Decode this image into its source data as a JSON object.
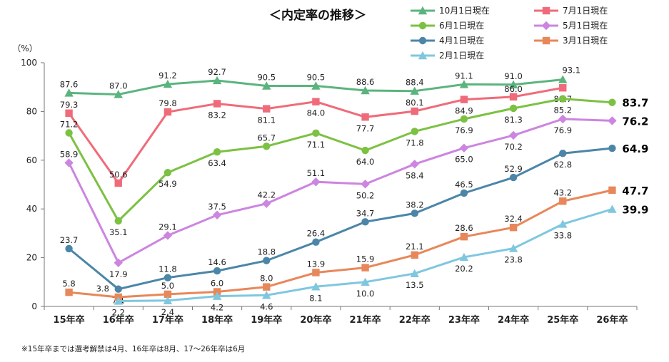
{
  "chart_data": {
    "type": "line",
    "title": "＜内定率の推移＞",
    "ylabel": "（%）",
    "ylim": [
      0,
      100
    ],
    "yticks": [
      0,
      20,
      40,
      60,
      80,
      100
    ],
    "categories": [
      "15年卒",
      "16年卒",
      "17年卒",
      "18年卒",
      "19年卒",
      "20年卒",
      "21年卒",
      "22年卒",
      "23年卒",
      "24年卒",
      "25年卒",
      "26年卒"
    ],
    "series": [
      {
        "name": "10月1日現在",
        "color": "#5bb47e",
        "marker": "triangle",
        "values": [
          87.6,
          87.0,
          91.2,
          92.7,
          90.5,
          90.5,
          88.6,
          88.4,
          91.1,
          91.0,
          93.1,
          null
        ]
      },
      {
        "name": "7月1日現在",
        "color": "#f06b79",
        "marker": "square",
        "values": [
          79.3,
          50.6,
          79.8,
          83.2,
          81.1,
          84.0,
          77.7,
          80.1,
          84.9,
          86.0,
          89.7,
          null
        ]
      },
      {
        "name": "6月1日現在",
        "color": "#7cc142",
        "marker": "circle",
        "values": [
          71.2,
          35.1,
          54.9,
          63.4,
          65.7,
          71.1,
          64.0,
          71.8,
          76.9,
          81.3,
          85.2,
          83.7
        ]
      },
      {
        "name": "5月1日現在",
        "color": "#cc85e0",
        "marker": "diamond",
        "values": [
          58.9,
          17.9,
          29.1,
          37.5,
          42.2,
          51.1,
          50.2,
          58.4,
          65.0,
          70.2,
          76.9,
          76.2
        ]
      },
      {
        "name": "4月1日現在",
        "color": "#4b86a8",
        "marker": "circle",
        "values": [
          23.7,
          7.1,
          11.8,
          14.6,
          18.8,
          26.4,
          34.7,
          38.2,
          46.5,
          52.9,
          62.8,
          64.9
        ]
      },
      {
        "name": "3月1日現在",
        "color": "#e8875a",
        "marker": "square",
        "values": [
          5.8,
          3.8,
          5.0,
          6.0,
          8.0,
          13.9,
          15.9,
          21.1,
          28.6,
          32.4,
          43.2,
          47.7
        ]
      },
      {
        "name": "2月1日現在",
        "color": "#7fc7df",
        "marker": "triangle",
        "values": [
          null,
          2.2,
          2.4,
          4.2,
          4.6,
          8.1,
          10.0,
          13.5,
          20.2,
          23.8,
          33.8,
          39.9
        ]
      }
    ],
    "grid": false,
    "legend_position": "top-right"
  },
  "footnote": "※15年卒までは選考解禁は4月、16年卒は8月、17～26年卒は6月"
}
